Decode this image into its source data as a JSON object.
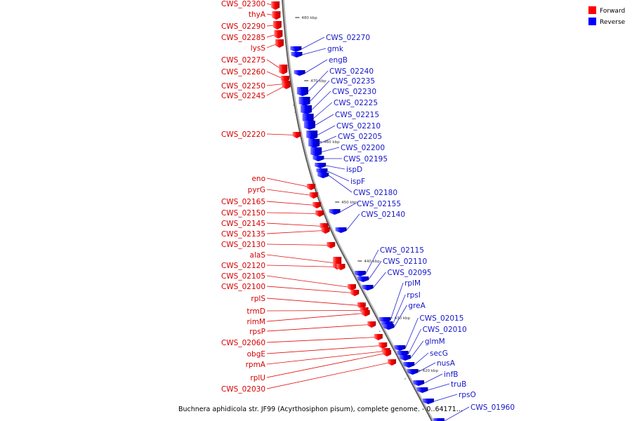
{
  "caption": "Buchnera aphidicola str. JF99 (Acyrthosiphon pisum), complete genome. - 0..64171...",
  "legend": {
    "forward_label": "Forward",
    "reverse_label": "Reverse",
    "forward_color": "#ff0000",
    "reverse_color": "#0000ff"
  },
  "ticks": [
    "480 kbp",
    "470 kbp",
    "460 kbp",
    "450 kbp",
    "440 kbp",
    "430 kbp",
    "420 kbp"
  ],
  "forward_genes": [
    "CWS_02300",
    "thyA",
    "CWS_02290",
    "CWS_02285",
    "lysS",
    "CWS_02275",
    "CWS_02260",
    "CWS_02250",
    "CWS_02245",
    "CWS_02220",
    "eno",
    "pyrG",
    "CWS_02165",
    "CWS_02150",
    "CWS_02145",
    "CWS_02135",
    "CWS_02130",
    "alaS",
    "CWS_02120",
    "CWS_02105",
    "CWS_02100",
    "rplS",
    "trmD",
    "rimM",
    "rpsP",
    "CWS_02060",
    "obgE",
    "rpmA",
    "rplU",
    "CWS_02030"
  ],
  "reverse_genes": [
    "CWS_02270",
    "gmk",
    "engB",
    "CWS_02240",
    "CWS_02235",
    "CWS_02230",
    "CWS_02225",
    "CWS_02215",
    "CWS_02210",
    "CWS_02205",
    "CWS_02200",
    "CWS_02195",
    "ispD",
    "ispF",
    "CWS_02180",
    "CWS_02155",
    "CWS_02140",
    "CWS_02115",
    "CWS_02110",
    "CWS_02095",
    "rplM",
    "rpsI",
    "greA",
    "CWS_02015",
    "CWS_02010",
    "glmM",
    "secG",
    "nusA",
    "infB",
    "truB",
    "rpsO",
    "CWS_01960"
  ]
}
